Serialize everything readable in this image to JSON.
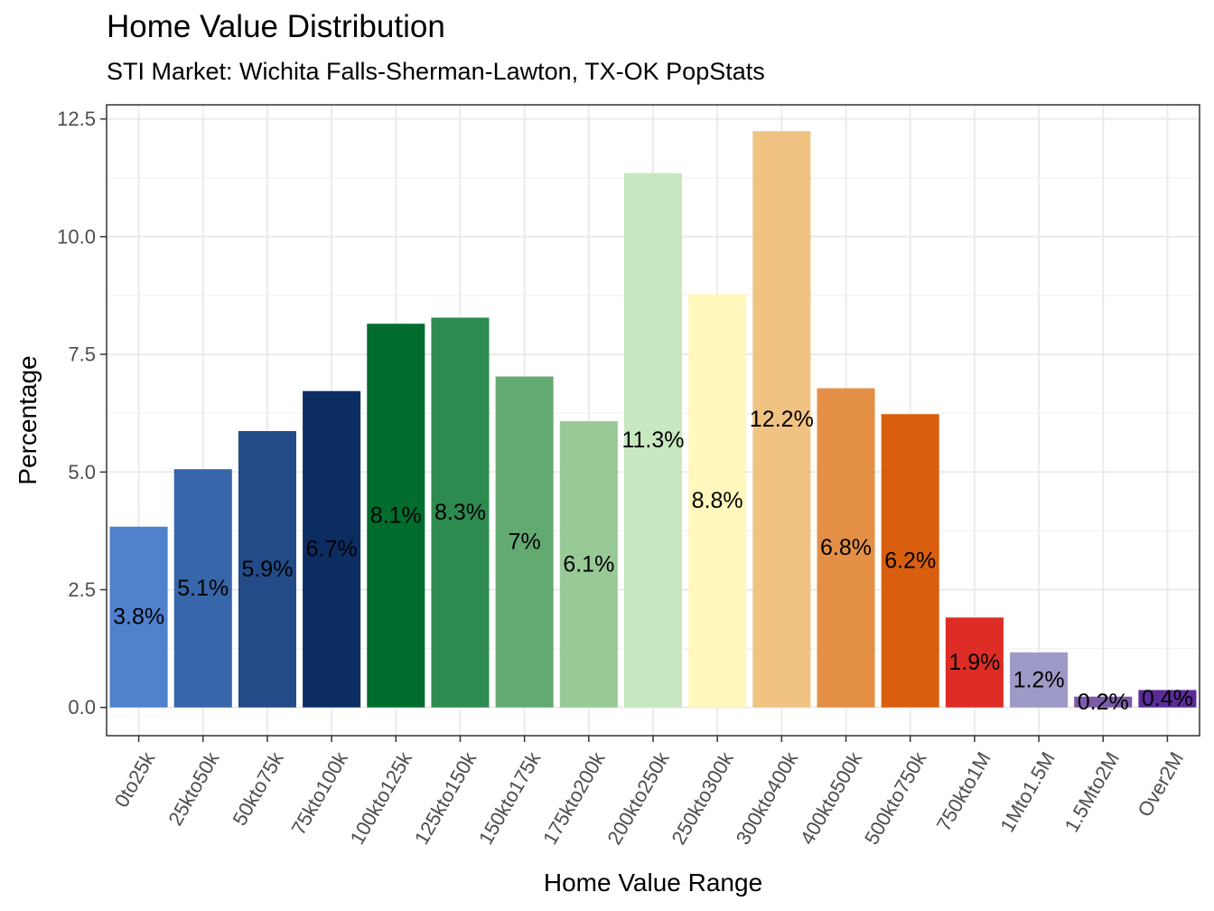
{
  "chart_data": {
    "type": "bar",
    "title": "Home Value Distribution",
    "subtitle": "STI Market: Wichita Falls-Sherman-Lawton, TX-OK PopStats",
    "xlabel": "Home Value Range",
    "ylabel": "Percentage",
    "ylim": [
      -0.6,
      12.8
    ],
    "yticks": [
      0,
      2.5,
      5,
      7.5,
      10,
      12.5
    ],
    "ytick_labels": [
      "0.0",
      "2.5",
      "5.0",
      "7.5",
      "10.0",
      "12.5"
    ],
    "grid": true,
    "categories": [
      "0to25k",
      "25kto50k",
      "50kto75k",
      "75kto100k",
      "100kto125k",
      "125kto150k",
      "150kto175k",
      "175kto200k",
      "200kto250k",
      "250kto300k",
      "300kto400k",
      "400kto500k",
      "500kto750k",
      "750kto1M",
      "1Mto1.5M",
      "1.5Mto2M",
      "Over2M"
    ],
    "values": [
      3.84,
      5.06,
      5.87,
      6.72,
      8.15,
      8.28,
      7.03,
      6.08,
      11.35,
      8.78,
      12.24,
      6.78,
      6.23,
      1.91,
      1.17,
      0.23,
      0.37
    ],
    "labels": [
      "3.8%",
      "5.1%",
      "5.9%",
      "6.7%",
      "8.1%",
      "8.3%",
      "7%",
      "6.1%",
      "11.3%",
      "8.8%",
      "12.2%",
      "6.8%",
      "6.2%",
      "1.9%",
      "1.2%",
      "0.2%",
      "0.4%"
    ],
    "colors": [
      "#4F81CC",
      "#3766AA",
      "#224B87",
      "#0C2D62",
      "#006D2C",
      "#2E8B50",
      "#63AA72",
      "#97CA96",
      "#C7E8C0",
      "#FFF7BC",
      "#F0C382",
      "#E39046",
      "#D95F0E",
      "#DE2D26",
      "#9E9AC8",
      "#7D5BA8",
      "#5B2C99"
    ]
  }
}
